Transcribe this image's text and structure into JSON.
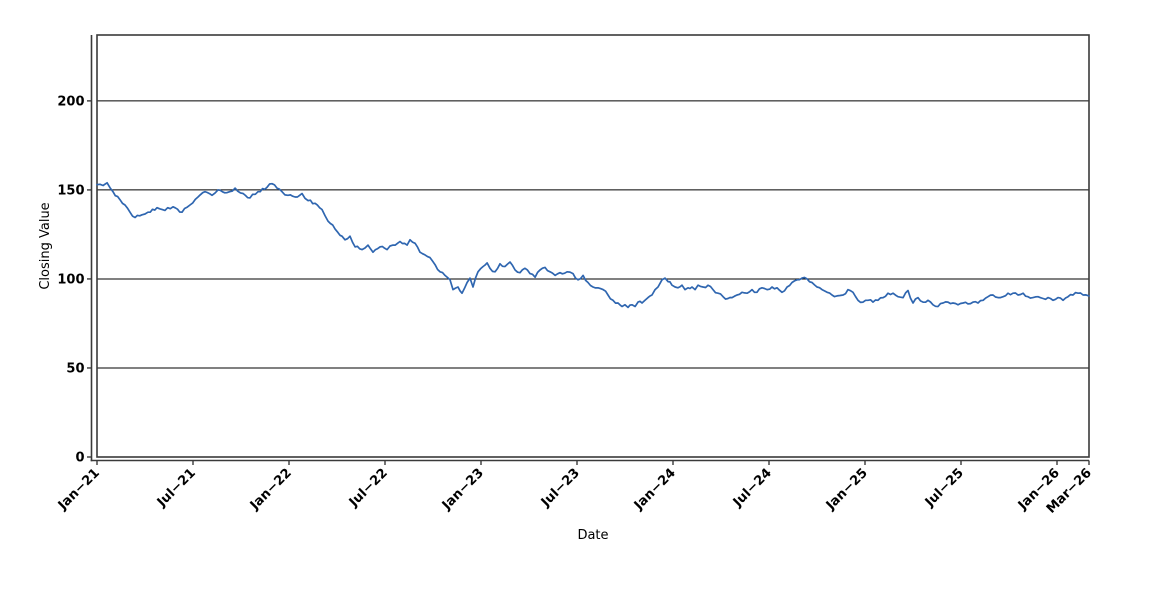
{
  "chart_data": {
    "type": "line",
    "xlabel": "Date",
    "ylabel": "Closing Value",
    "x_unit": "months since Jan-2021",
    "xlim": [
      0,
      62
    ],
    "ylim": [
      0,
      237
    ],
    "grid": "horizontal",
    "legend": "none",
    "y_ticks": [
      0,
      50,
      100,
      150,
      200
    ],
    "y_gridlines": [
      50,
      100,
      150,
      200
    ],
    "x_ticks": [
      {
        "t": 0,
        "label": "Jan−21"
      },
      {
        "t": 6,
        "label": "Jul−21"
      },
      {
        "t": 12,
        "label": "Jan−22"
      },
      {
        "t": 18,
        "label": "Jul−22"
      },
      {
        "t": 24,
        "label": "Jan−23"
      },
      {
        "t": 30,
        "label": "Jul−23"
      },
      {
        "t": 36,
        "label": "Jan−24"
      },
      {
        "t": 42,
        "label": "Jul−24"
      },
      {
        "t": 48,
        "label": "Jan−25"
      },
      {
        "t": 54,
        "label": "Jul−25"
      },
      {
        "t": 60,
        "label": "Jan−26"
      },
      {
        "t": 62,
        "label": "Mar−26"
      }
    ],
    "colors": {
      "line": "#2f66b0",
      "axis": "#3a3a3a",
      "grid": "#000000",
      "background": "#ffffff",
      "text": "#000000"
    },
    "series": [
      {
        "name": "Closing Value",
        "color": "#2f66b0",
        "points": [
          [
            0,
            153
          ],
          [
            0.38,
            152.5
          ],
          [
            0.63,
            154
          ],
          [
            1,
            149
          ],
          [
            1.44,
            144.5
          ],
          [
            1.75,
            141.5
          ],
          [
            2.06,
            137.5
          ],
          [
            2.38,
            134.5
          ],
          [
            2.81,
            136
          ],
          [
            3.19,
            137.5
          ],
          [
            3.75,
            140
          ],
          [
            4.25,
            138.5
          ],
          [
            4.75,
            140.5
          ],
          [
            5.31,
            137.5
          ],
          [
            5.81,
            141.5
          ],
          [
            6.31,
            146
          ],
          [
            6.75,
            149
          ],
          [
            7.19,
            147
          ],
          [
            7.56,
            150
          ],
          [
            8.13,
            148.5
          ],
          [
            8.63,
            151
          ],
          [
            9.13,
            148
          ],
          [
            9.56,
            145.5
          ],
          [
            10.06,
            149
          ],
          [
            10.63,
            151.5
          ],
          [
            10.94,
            153.5
          ],
          [
            11.25,
            151
          ],
          [
            11.56,
            149
          ],
          [
            11.94,
            147
          ],
          [
            12.38,
            146
          ],
          [
            12.81,
            148
          ],
          [
            13.19,
            144
          ],
          [
            13.63,
            142.5
          ],
          [
            14.06,
            139
          ],
          [
            14.44,
            132.5
          ],
          [
            14.88,
            128
          ],
          [
            15.06,
            126
          ],
          [
            15.31,
            124
          ],
          [
            15.5,
            122
          ],
          [
            15.81,
            124
          ],
          [
            16.13,
            118
          ],
          [
            16.56,
            116.5
          ],
          [
            16.94,
            119
          ],
          [
            17.25,
            115
          ],
          [
            17.69,
            118
          ],
          [
            18.13,
            116.5
          ],
          [
            18.5,
            119
          ],
          [
            18.94,
            121
          ],
          [
            19.38,
            119
          ],
          [
            19.56,
            122
          ],
          [
            19.88,
            120
          ],
          [
            20.19,
            115
          ],
          [
            20.5,
            113.5
          ],
          [
            20.81,
            112
          ],
          [
            21.13,
            108
          ],
          [
            21.44,
            104
          ],
          [
            21.75,
            102
          ],
          [
            22.06,
            99.5
          ],
          [
            22.25,
            94
          ],
          [
            22.56,
            95.5
          ],
          [
            22.81,
            92
          ],
          [
            23.13,
            98
          ],
          [
            23.31,
            100.5
          ],
          [
            23.5,
            95.5
          ],
          [
            23.81,
            104
          ],
          [
            24.13,
            107
          ],
          [
            24.38,
            109
          ],
          [
            24.56,
            106
          ],
          [
            24.88,
            104
          ],
          [
            25.19,
            108.5
          ],
          [
            25.5,
            107
          ],
          [
            25.81,
            109.5
          ],
          [
            26.13,
            105
          ],
          [
            26.44,
            103.5
          ],
          [
            26.75,
            106
          ],
          [
            27.06,
            103
          ],
          [
            27.38,
            101
          ],
          [
            27.69,
            105
          ],
          [
            28,
            106.5
          ],
          [
            28.31,
            104
          ],
          [
            28.63,
            102
          ],
          [
            28.94,
            103.5
          ],
          [
            29.38,
            104
          ],
          [
            29.75,
            103
          ],
          [
            30.06,
            99.5
          ],
          [
            30.38,
            102
          ],
          [
            30.69,
            98
          ],
          [
            31,
            95.5
          ],
          [
            31.31,
            95
          ],
          [
            31.63,
            94
          ],
          [
            31.94,
            91
          ],
          [
            32.25,
            88
          ],
          [
            32.56,
            86.5
          ],
          [
            32.81,
            84.5
          ],
          [
            33,
            85.5
          ],
          [
            33.19,
            84
          ],
          [
            33.44,
            85.5
          ],
          [
            33.63,
            84.5
          ],
          [
            33.81,
            87
          ],
          [
            34.06,
            86.5
          ],
          [
            34.25,
            88
          ],
          [
            34.44,
            89.5
          ],
          [
            34.69,
            91
          ],
          [
            34.88,
            94
          ],
          [
            35.06,
            95.5
          ],
          [
            35.31,
            99.5
          ],
          [
            35.5,
            100.5
          ],
          [
            35.69,
            98.5
          ],
          [
            35.94,
            96.5
          ],
          [
            36.13,
            95.5
          ],
          [
            36.31,
            95
          ],
          [
            36.56,
            96.5
          ],
          [
            36.75,
            94
          ],
          [
            36.94,
            95
          ],
          [
            37.19,
            95.5
          ],
          [
            37.38,
            94
          ],
          [
            37.56,
            96.5
          ],
          [
            37.88,
            95.5
          ],
          [
            38.19,
            96.5
          ],
          [
            38.5,
            94
          ],
          [
            38.81,
            92
          ],
          [
            39.13,
            90
          ],
          [
            39.44,
            89
          ],
          [
            39.69,
            89.5
          ],
          [
            40,
            91
          ],
          [
            40.31,
            92.5
          ],
          [
            40.63,
            92
          ],
          [
            40.94,
            94
          ],
          [
            41.25,
            92.5
          ],
          [
            41.56,
            95
          ],
          [
            41.88,
            94
          ],
          [
            42.19,
            95.5
          ],
          [
            42.5,
            95
          ],
          [
            42.81,
            92.5
          ],
          [
            43.13,
            95.5
          ],
          [
            43.44,
            98
          ],
          [
            43.75,
            99.5
          ],
          [
            44.06,
            100.5
          ],
          [
            44.38,
            100
          ],
          [
            44.69,
            98
          ],
          [
            45,
            95.5
          ],
          [
            45.31,
            94
          ],
          [
            45.63,
            92.5
          ],
          [
            45.94,
            91
          ],
          [
            46.25,
            90.5
          ],
          [
            46.63,
            91
          ],
          [
            46.94,
            94
          ],
          [
            47.25,
            92.5
          ],
          [
            47.56,
            88
          ],
          [
            47.88,
            87
          ],
          [
            48.19,
            88
          ],
          [
            48.5,
            87
          ],
          [
            48.81,
            88
          ],
          [
            49.13,
            89.5
          ],
          [
            49.44,
            92
          ],
          [
            49.75,
            92
          ],
          [
            50.06,
            90
          ],
          [
            50.38,
            89.5
          ],
          [
            50.69,
            93.5
          ],
          [
            51,
            86.5
          ],
          [
            51.31,
            89.5
          ],
          [
            51.63,
            87
          ],
          [
            51.94,
            88
          ],
          [
            52.25,
            85.5
          ],
          [
            52.56,
            84.5
          ],
          [
            52.88,
            86.5
          ],
          [
            53.19,
            87
          ],
          [
            53.5,
            86.5
          ],
          [
            53.81,
            85.5
          ],
          [
            54.13,
            86.5
          ],
          [
            54.44,
            86
          ],
          [
            54.75,
            87
          ],
          [
            55.06,
            86.5
          ],
          [
            55.38,
            88
          ],
          [
            55.69,
            90
          ],
          [
            56,
            91
          ],
          [
            56.31,
            89.5
          ],
          [
            56.63,
            90
          ],
          [
            56.94,
            92
          ],
          [
            57.25,
            92
          ],
          [
            57.56,
            91
          ],
          [
            57.88,
            92
          ],
          [
            58.19,
            90
          ],
          [
            58.5,
            89.5
          ],
          [
            58.81,
            90
          ],
          [
            59.13,
            89
          ],
          [
            59.44,
            89.5
          ],
          [
            59.75,
            88
          ],
          [
            60.06,
            89.5
          ],
          [
            60.38,
            88
          ],
          [
            60.69,
            90
          ],
          [
            61,
            91
          ],
          [
            61.31,
            92
          ],
          [
            61.63,
            91
          ],
          [
            62,
            90.5
          ]
        ]
      }
    ]
  }
}
